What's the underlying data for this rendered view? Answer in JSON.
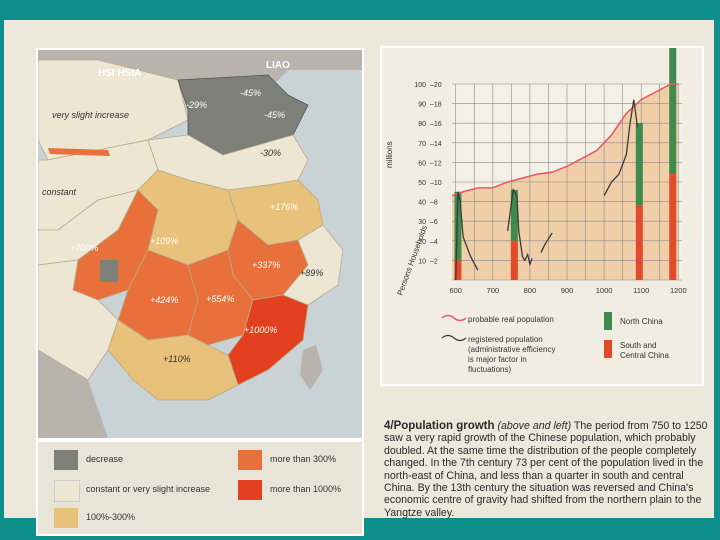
{
  "map": {
    "labels": {
      "hsi_hsia": "HSI HSIA",
      "liao": "LIAO",
      "very_slight_increase": "very slight increase",
      "constant": "constant"
    },
    "region_values": [
      "-29%",
      "-45%",
      "-45%",
      "-30%",
      "+176%",
      "+700%",
      "+109%",
      "+337%",
      "+89%",
      "+424%",
      "+554%",
      "+1000%",
      "+110%"
    ],
    "colors": {
      "decrease": "#7d8079",
      "constant": "#ece6d3",
      "growth_100_300": "#e8c27a",
      "more_than_300": "#e8703a",
      "more_than_1000": "#e2401f",
      "sea": "#c9d3d6",
      "foreign": "#b8b4ad"
    }
  },
  "legend": {
    "decrease": "decrease",
    "constant": "constant or very slight increase",
    "growth_100_300": "100%-300%",
    "more_than_300": "more than 300%",
    "more_than_1000": "more than 1000%"
  },
  "chart_data": {
    "type": "line",
    "x_ticks": [
      "600",
      "700",
      "800",
      "900",
      "1000",
      "1100",
      "1200"
    ],
    "y_ticks_millions": [
      "100",
      "90",
      "80",
      "70",
      "60",
      "50",
      "40",
      "30",
      "20",
      "10"
    ],
    "y_ticks_households": [
      "20",
      "18",
      "16",
      "14",
      "12",
      "10",
      "8",
      "6",
      "4",
      "2"
    ],
    "y_axis_label_top": "millions",
    "y_axis_label_bottom": "Persons    Households",
    "xlim": [
      590,
      1210
    ],
    "ylim": [
      0,
      100
    ],
    "series": [
      {
        "name": "probable real population",
        "color": "#e85a6a",
        "points": [
          [
            590,
            43
          ],
          [
            620,
            45
          ],
          [
            660,
            47
          ],
          [
            700,
            47
          ],
          [
            740,
            50
          ],
          [
            780,
            52
          ],
          [
            820,
            54
          ],
          [
            860,
            55
          ],
          [
            900,
            58
          ],
          [
            940,
            62
          ],
          [
            980,
            66
          ],
          [
            1020,
            74
          ],
          [
            1060,
            85
          ],
          [
            1100,
            92
          ],
          [
            1140,
            96
          ],
          [
            1180,
            100
          ],
          [
            1200,
            100
          ]
        ]
      },
      {
        "name": "registered population",
        "color": "#3a3a3a",
        "segments": [
          [
            [
              600,
              0
            ],
            [
              606,
              45
            ],
            [
              612,
              40
            ],
            [
              620,
              22
            ],
            [
              640,
              12
            ],
            [
              660,
              5
            ]
          ],
          [
            [
              740,
              25
            ],
            [
              755,
              46
            ],
            [
              765,
              43
            ],
            [
              770,
              25
            ],
            [
              780,
              12
            ],
            [
              786,
              10
            ],
            [
              794,
              13
            ],
            [
              800,
              8
            ],
            [
              806,
              11
            ]
          ],
          [
            [
              830,
              14
            ],
            [
              840,
              18
            ],
            [
              860,
              24
            ]
          ],
          [
            [
              1000,
              43
            ],
            [
              1020,
              50
            ],
            [
              1040,
              54
            ],
            [
              1060,
              64
            ],
            [
              1070,
              80
            ],
            [
              1080,
              92
            ],
            [
              1090,
              78
            ]
          ]
        ]
      }
    ],
    "bars": [
      {
        "x": 606,
        "north": 35,
        "south": 10
      },
      {
        "x": 758,
        "north": 26,
        "south": 20
      },
      {
        "x": 1095,
        "north": 42,
        "south": 38
      },
      {
        "x": 1185,
        "north": 71,
        "south": 54
      }
    ],
    "bar_colors": {
      "north": "#3f8a4d",
      "south": "#e24a2a"
    },
    "grid": true,
    "legend_items": {
      "real": "probable real population",
      "registered_1": "registered population",
      "registered_2": "(administrative efficiency",
      "registered_3": "is major factor in",
      "registered_4": "fluctuations)",
      "north": "North China",
      "south_1": "South and",
      "south_2": "Central China"
    }
  },
  "caption": {
    "title": "4/Population growth",
    "subtitle": "(above and left)",
    "body": "The period from 750 to 1250 saw a very rapid growth of the Chinese population, which probably doubled. At the same time the distribution of the people completely changed. In the 7th century 73 per cent of the population lived in the north-east of China, and less than a quarter in south and central China. By the 13th century the situation was reversed and China's economic centre of gravity had shifted from the northern plain to the Yangtze valley."
  }
}
